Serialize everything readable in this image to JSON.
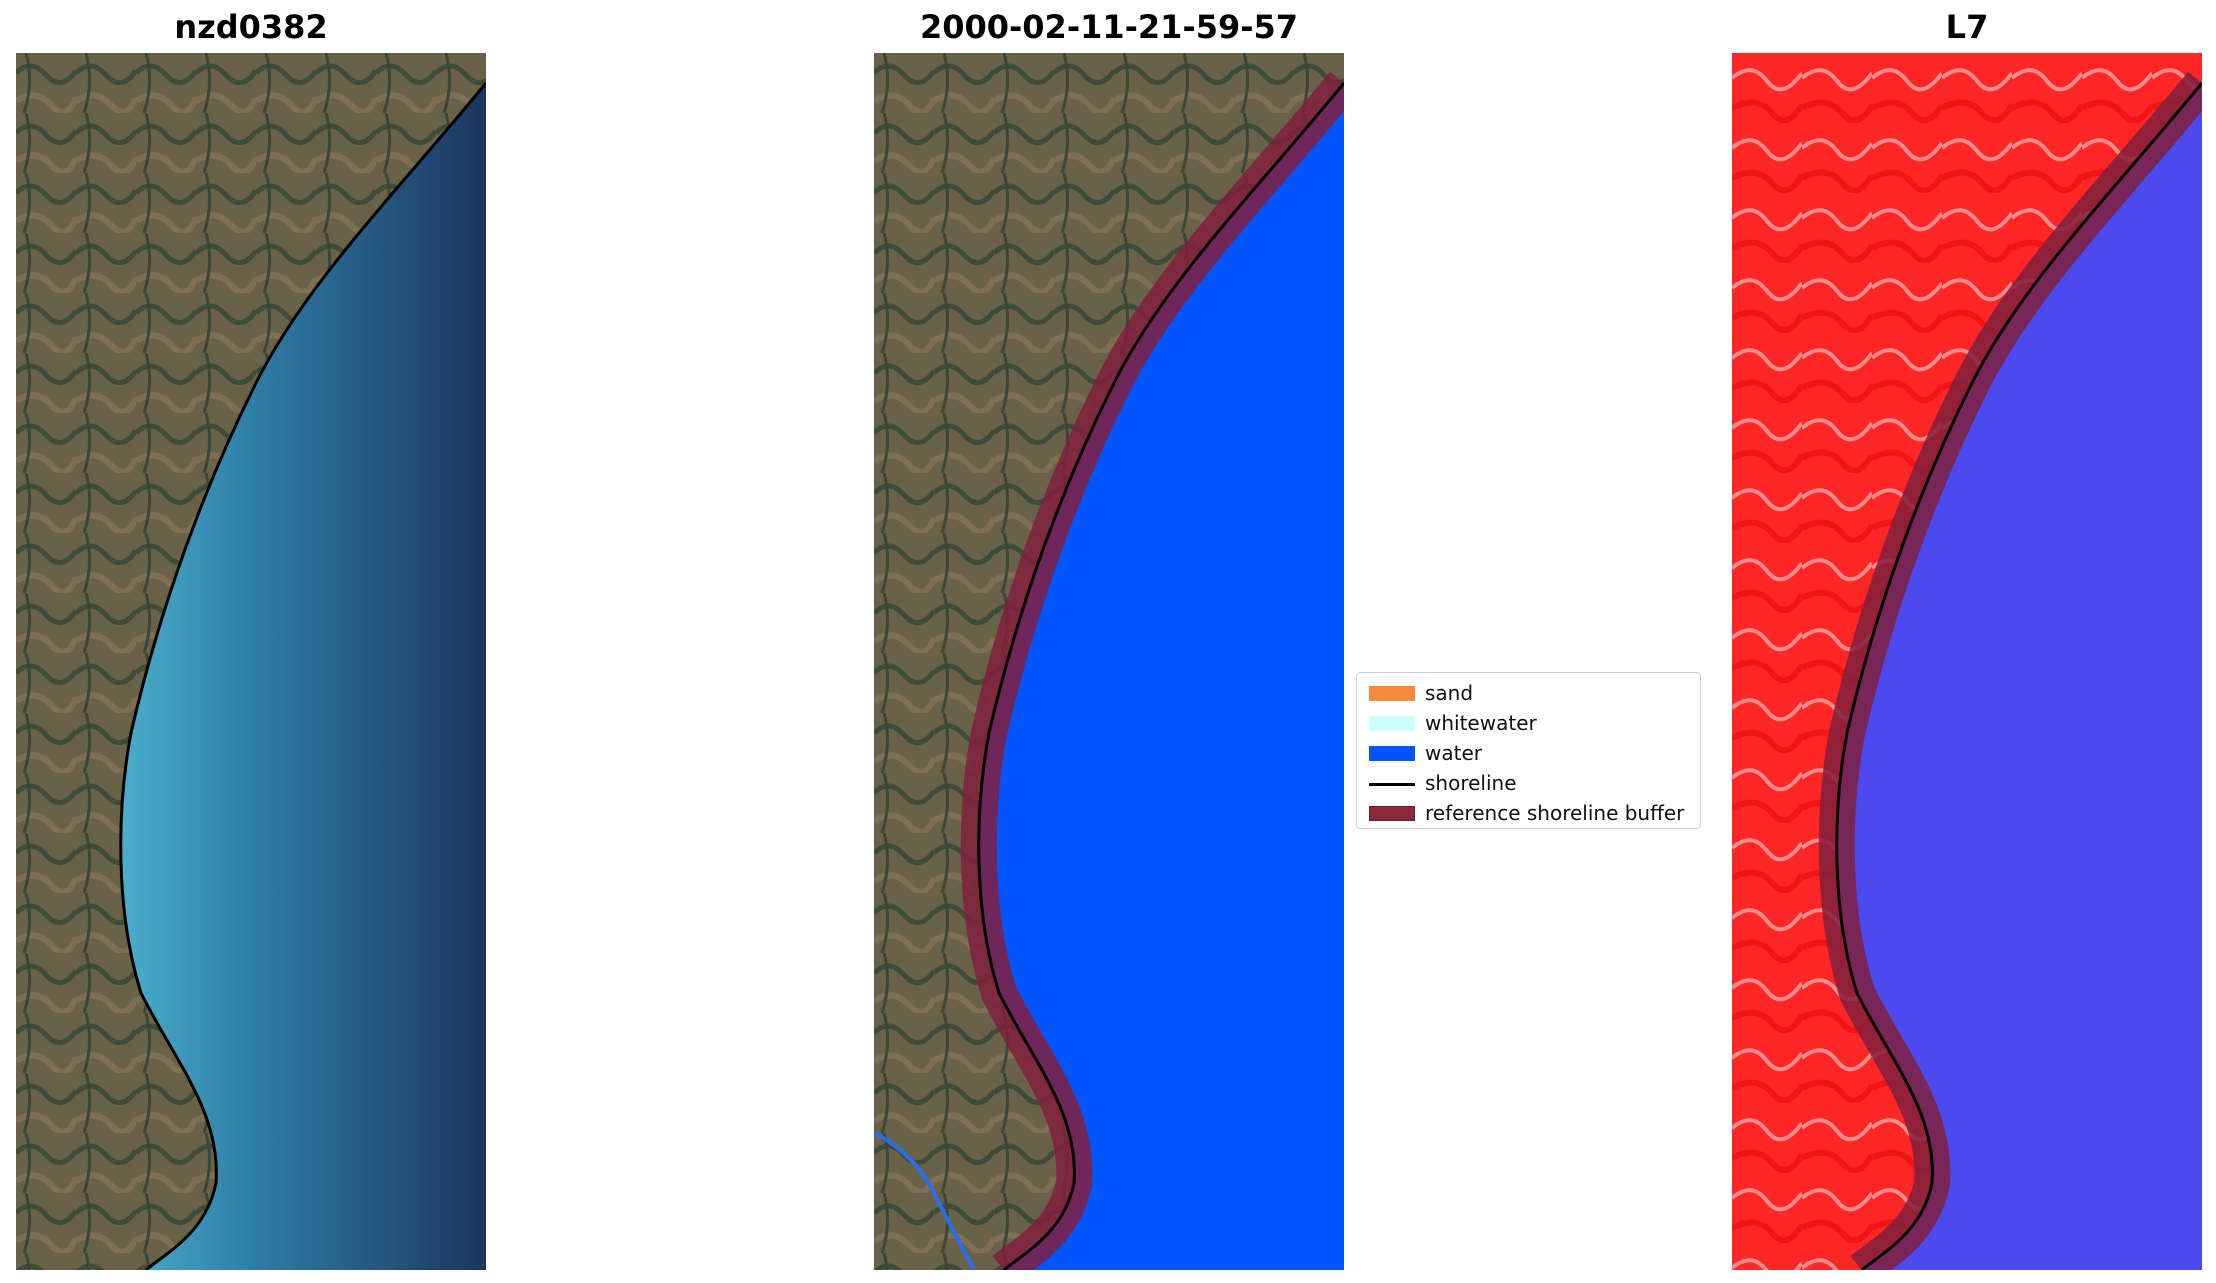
{
  "panels": [
    {
      "title": "nzd0382"
    },
    {
      "title": "2000-02-11-21-59-57"
    },
    {
      "title": "L7"
    }
  ],
  "legend": {
    "items": [
      {
        "label": "sand",
        "color": "#f58b3a",
        "kind": "patch"
      },
      {
        "label": "whitewater",
        "color": "#ccffff",
        "kind": "patch"
      },
      {
        "label": "water",
        "color": "#0055ff",
        "kind": "patch"
      },
      {
        "label": "shoreline",
        "color": "#000000",
        "kind": "line"
      },
      {
        "label": "reference shoreline buffer",
        "color": "#8b2a3a",
        "kind": "patch"
      }
    ]
  },
  "colors": {
    "land": "#5b5a44",
    "shallow_water": "#3d97b5",
    "deep_water": "#1d3560",
    "classified_water": "#0055ff",
    "buffer": "#80203d",
    "nir_land": "#ff2020",
    "nir_water": "#4848f2"
  }
}
